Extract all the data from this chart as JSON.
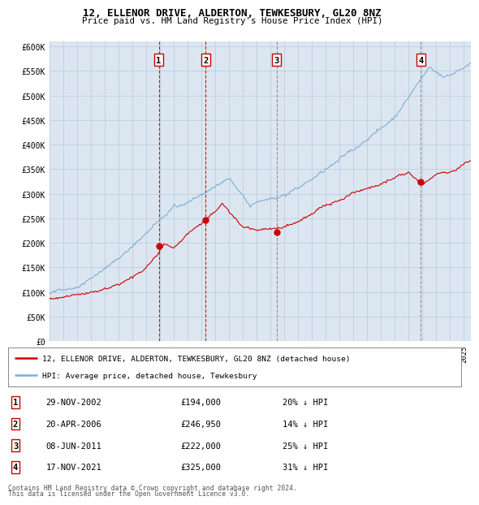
{
  "title1": "12, ELLENOR DRIVE, ALDERTON, TEWKESBURY, GL20 8NZ",
  "title2": "Price paid vs. HM Land Registry's House Price Index (HPI)",
  "ylabel_ticks": [
    "£0",
    "£50K",
    "£100K",
    "£150K",
    "£200K",
    "£250K",
    "£300K",
    "£350K",
    "£400K",
    "£450K",
    "£500K",
    "£550K",
    "£600K"
  ],
  "ytick_values": [
    0,
    50000,
    100000,
    150000,
    200000,
    250000,
    300000,
    350000,
    400000,
    450000,
    500000,
    550000,
    600000
  ],
  "ylim": [
    0,
    610000
  ],
  "xlim_start": 1995.0,
  "xlim_end": 2025.5,
  "sales": [
    {
      "label": 1,
      "date_str": "29-NOV-2002",
      "price": 194000,
      "pct": "20%",
      "x": 2002.91,
      "vline_color": "#cc0000",
      "vline_style": "--"
    },
    {
      "label": 2,
      "date_str": "20-APR-2006",
      "price": 246950,
      "pct": "14%",
      "x": 2006.3,
      "vline_color": "#cc0000",
      "vline_style": "--"
    },
    {
      "label": 3,
      "date_str": "08-JUN-2011",
      "price": 222000,
      "pct": "25%",
      "x": 2011.44,
      "vline_color": "#888888",
      "vline_style": "--"
    },
    {
      "label": 4,
      "date_str": "17-NOV-2021",
      "price": 325000,
      "pct": "31%",
      "x": 2021.88,
      "vline_color": "#888888",
      "vline_style": "--"
    }
  ],
  "legend_line1": "12, ELLENOR DRIVE, ALDERTON, TEWKESBURY, GL20 8NZ (detached house)",
  "legend_line2": "HPI: Average price, detached house, Tewkesbury",
  "footer1": "Contains HM Land Registry data © Crown copyright and database right 2024.",
  "footer2": "This data is licensed under the Open Government Licence v3.0.",
  "hpi_color": "#7bafd4",
  "sale_color": "#cc0000",
  "sale_dot_color": "#cc0000",
  "bg_color": "#dce6f1",
  "plot_bg": "#ffffff",
  "grid_color": "#b8c8dc"
}
